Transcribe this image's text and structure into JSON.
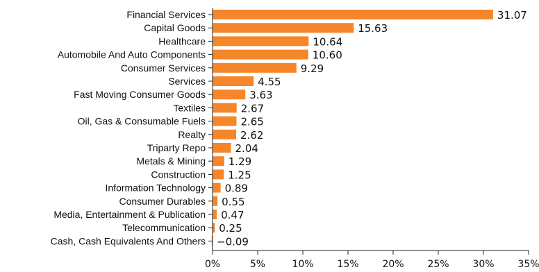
{
  "chart_data": {
    "type": "bar",
    "orientation": "horizontal",
    "categories": [
      "Financial Services",
      "Capital Goods",
      "Healthcare",
      "Automobile And Auto Components",
      "Consumer Services",
      "Services",
      "Fast Moving Consumer Goods",
      "Textiles",
      "Oil, Gas & Consumable Fuels",
      "Realty",
      "Triparty Repo",
      "Metals & Mining",
      "Construction",
      "Information Technology",
      "Consumer Durables",
      "Media, Entertainment & Publication",
      "Telecommunication",
      "Cash, Cash Equivalents And Others"
    ],
    "values": [
      31.07,
      15.63,
      10.64,
      10.6,
      9.29,
      4.55,
      3.63,
      2.67,
      2.65,
      2.62,
      2.04,
      1.29,
      1.25,
      0.89,
      0.55,
      0.47,
      0.25,
      -0.09
    ],
    "value_labels": [
      "31.07",
      "15.63",
      "10.64",
      "10.60",
      "9.29",
      "4.55",
      "3.63",
      "2.67",
      "2.65",
      "2.62",
      "2.04",
      "1.29",
      "1.25",
      "0.89",
      "0.55",
      "0.47",
      "0.25",
      "−0.09"
    ],
    "x_ticks": [
      "0%",
      "5%",
      "10%",
      "15%",
      "20%",
      "25%",
      "30%",
      "35%"
    ],
    "xlim": [
      0,
      35
    ],
    "grid": false,
    "legend": "none",
    "bar_color": "#f5862a",
    "title": "",
    "xlabel": "",
    "ylabel": ""
  }
}
